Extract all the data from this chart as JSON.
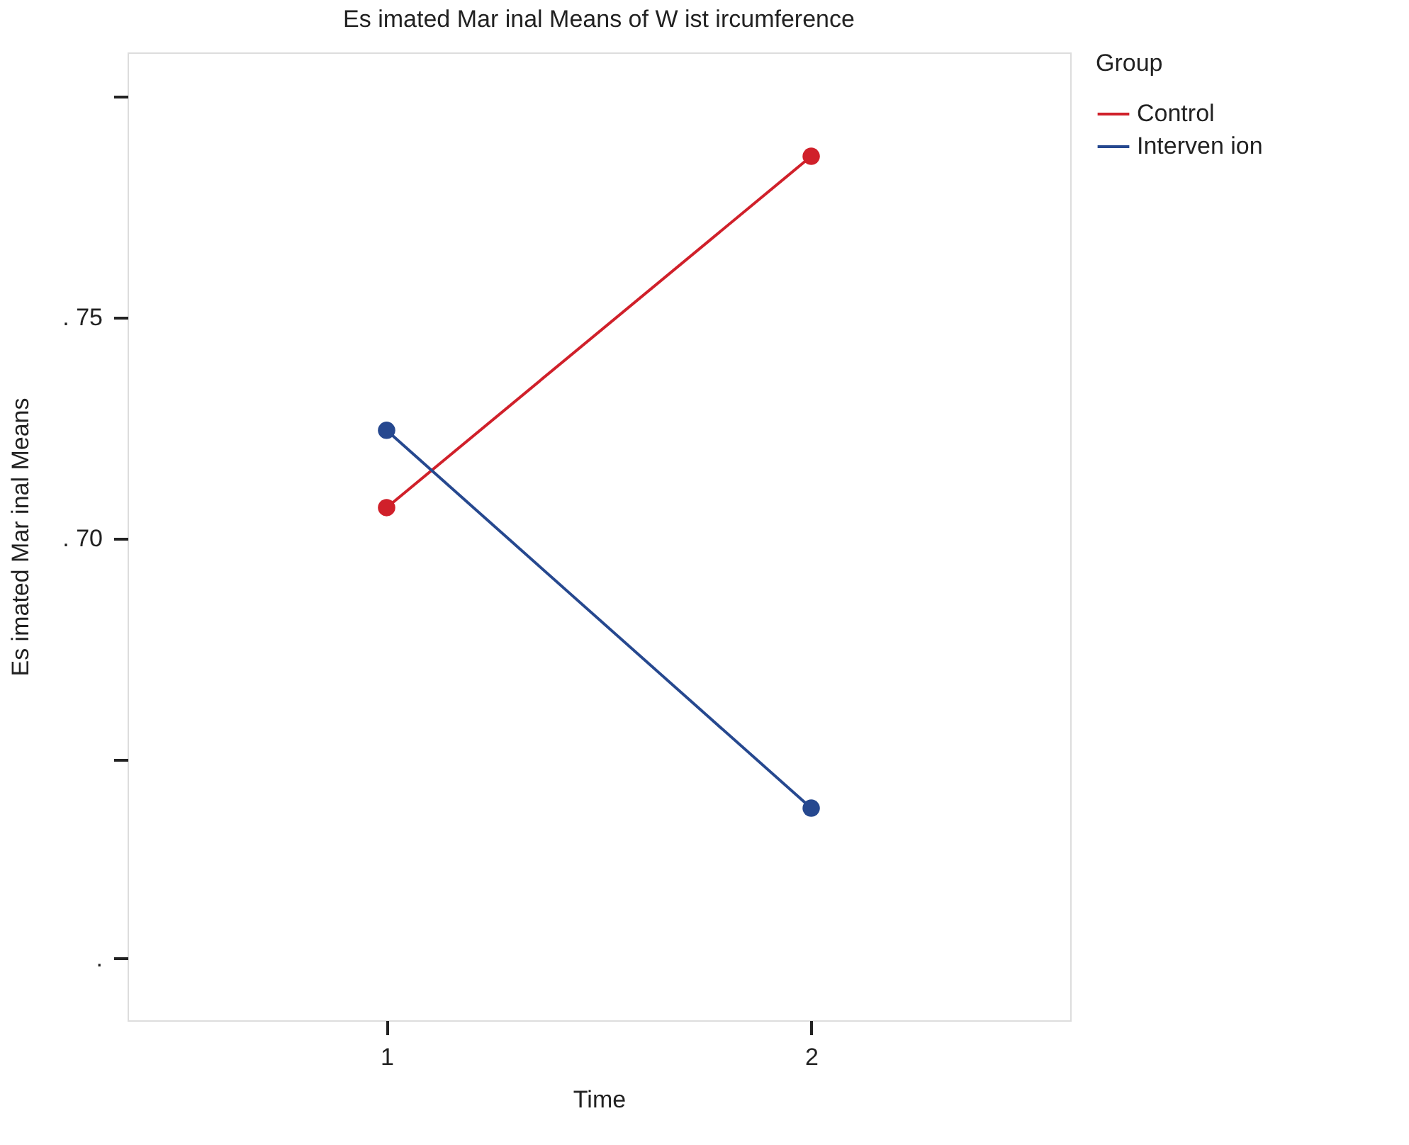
{
  "chart_data": {
    "type": "line",
    "title": "Es imated Mar  inal Means of W  ist   ircumference",
    "xlabel": "Time",
    "ylabel": "Es imated Mar  inal Means",
    "legend_title": "Group",
    "x": [
      1,
      2
    ],
    "series": [
      {
        "name": "Control",
        "color": "#d0202a",
        "values": [
          70.7,
          78.65
        ]
      },
      {
        "name": "Interven ion",
        "color": "#26488f",
        "values": [
          72.45,
          63.9
        ]
      }
    ],
    "xlim": [
      0.39,
      2.61
    ],
    "xticks": [
      1,
      2
    ],
    "ylim": [
      59.1,
      81
    ],
    "yticks": [
      {
        "value": 60.5,
        "label": "."
      },
      {
        "value": 65,
        "label": null
      },
      {
        "value": 70,
        "label": ". 70"
      },
      {
        "value": 75,
        "label": ". 75"
      },
      {
        "value": 80,
        "label": null
      }
    ],
    "marker": "circle",
    "line_style": "solid",
    "grid": false,
    "legend": "top right"
  }
}
